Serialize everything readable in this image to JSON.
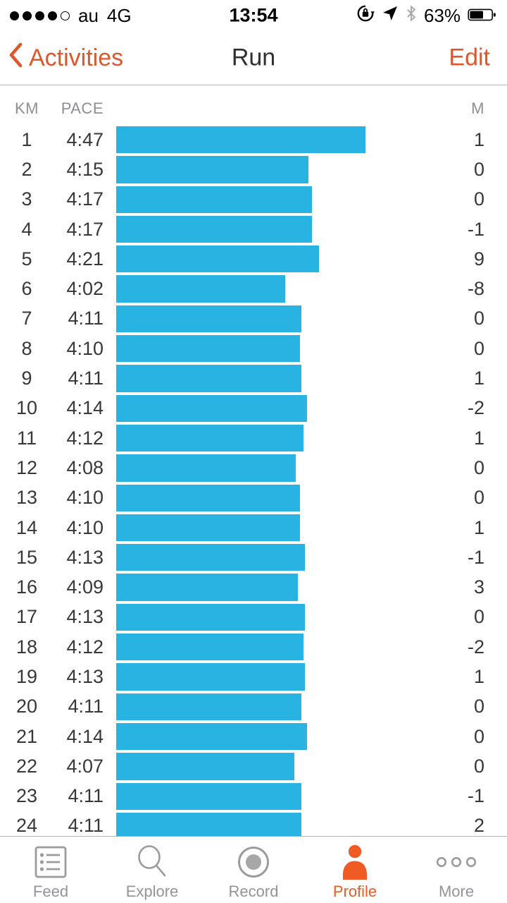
{
  "status_bar": {
    "signal": {
      "filled_dots": 4,
      "total_dots": 5
    },
    "carrier": "au",
    "network": "4G",
    "time": "13:54",
    "battery_percent": "63%",
    "icons": [
      "orientation-lock-icon",
      "location-arrow-icon",
      "bluetooth-icon",
      "battery-icon"
    ]
  },
  "nav_bar": {
    "back_label": "Activities",
    "title": "Run",
    "edit_label": "Edit"
  },
  "table": {
    "columns": {
      "km": "KM",
      "pace": "PACE",
      "elevation": "M"
    },
    "rows": [
      {
        "km": "1",
        "pace": "4:47",
        "elevation_m": "1"
      },
      {
        "km": "2",
        "pace": "4:15",
        "elevation_m": "0"
      },
      {
        "km": "3",
        "pace": "4:17",
        "elevation_m": "0"
      },
      {
        "km": "4",
        "pace": "4:17",
        "elevation_m": "-1"
      },
      {
        "km": "5",
        "pace": "4:21",
        "elevation_m": "9"
      },
      {
        "km": "6",
        "pace": "4:02",
        "elevation_m": "-8"
      },
      {
        "km": "7",
        "pace": "4:11",
        "elevation_m": "0"
      },
      {
        "km": "8",
        "pace": "4:10",
        "elevation_m": "0"
      },
      {
        "km": "9",
        "pace": "4:11",
        "elevation_m": "1"
      },
      {
        "km": "10",
        "pace": "4:14",
        "elevation_m": "-2"
      },
      {
        "km": "11",
        "pace": "4:12",
        "elevation_m": "1"
      },
      {
        "km": "12",
        "pace": "4:08",
        "elevation_m": "0"
      },
      {
        "km": "13",
        "pace": "4:10",
        "elevation_m": "0"
      },
      {
        "km": "14",
        "pace": "4:10",
        "elevation_m": "1"
      },
      {
        "km": "15",
        "pace": "4:13",
        "elevation_m": "-1"
      },
      {
        "km": "16",
        "pace": "4:09",
        "elevation_m": "3"
      },
      {
        "km": "17",
        "pace": "4:13",
        "elevation_m": "0"
      },
      {
        "km": "18",
        "pace": "4:12",
        "elevation_m": "-2"
      },
      {
        "km": "19",
        "pace": "4:13",
        "elevation_m": "1"
      },
      {
        "km": "20",
        "pace": "4:11",
        "elevation_m": "0"
      },
      {
        "km": "21",
        "pace": "4:14",
        "elevation_m": "0"
      },
      {
        "km": "22",
        "pace": "4:07",
        "elevation_m": "0"
      },
      {
        "km": "23",
        "pace": "4:11",
        "elevation_m": "-1"
      },
      {
        "km": "24",
        "pace": "4:11",
        "elevation_m": "2"
      }
    ]
  },
  "tab_bar": {
    "active": "Profile",
    "items": [
      {
        "label": "Feed",
        "icon": "feed-list-icon"
      },
      {
        "label": "Explore",
        "icon": "search-icon"
      },
      {
        "label": "Record",
        "icon": "record-icon"
      },
      {
        "label": "Profile",
        "icon": "person-icon"
      },
      {
        "label": "More",
        "icon": "more-dots-icon"
      }
    ]
  },
  "colors": {
    "accent_orange": "#dd572b",
    "profile_orange": "#f05a24",
    "bar_blue": "#29b3e3",
    "header_gray": "#8e8e93",
    "row_text": "#38383a",
    "tab_label_gray": "#93939a",
    "icon_gray": "#9b9b9b",
    "hairline": "#b4b4b4"
  }
}
